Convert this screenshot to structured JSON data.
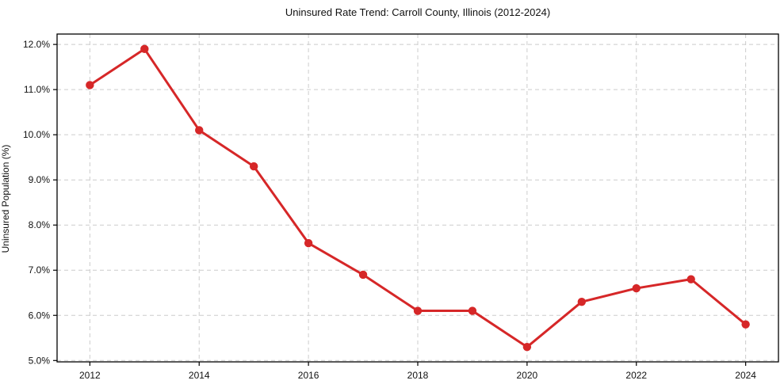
{
  "chart_data": {
    "type": "line",
    "title": "Uninsured Rate Trend: Carroll County, Illinois (2012-2024)",
    "ylabel": "Uninsured Population (%)",
    "xlabel": "",
    "x": [
      2012,
      2013,
      2014,
      2015,
      2016,
      2017,
      2018,
      2019,
      2020,
      2021,
      2022,
      2023,
      2024
    ],
    "values": [
      11.1,
      11.9,
      10.1,
      9.3,
      7.6,
      6.9,
      6.1,
      6.1,
      5.3,
      6.3,
      6.6,
      6.8,
      5.8
    ],
    "xticks": [
      2012,
      2014,
      2016,
      2018,
      2020,
      2022,
      2024
    ],
    "xtick_labels": [
      "2012",
      "2014",
      "2016",
      "2018",
      "2020",
      "2022",
      "2024"
    ],
    "yticks": [
      5.0,
      6.0,
      7.0,
      8.0,
      9.0,
      10.0,
      11.0,
      12.0
    ],
    "ytick_labels": [
      "5.0%",
      "6.0%",
      "7.0%",
      "8.0%",
      "9.0%",
      "10.0%",
      "11.0%",
      "12.0%"
    ],
    "xlim": [
      2011.4,
      2024.6
    ],
    "ylim": [
      4.97,
      12.23
    ],
    "grid": true,
    "legend": false,
    "line_color": "#d62728",
    "marker": "circle",
    "grid_color": "#cccccc",
    "spine_color": "#000000"
  }
}
